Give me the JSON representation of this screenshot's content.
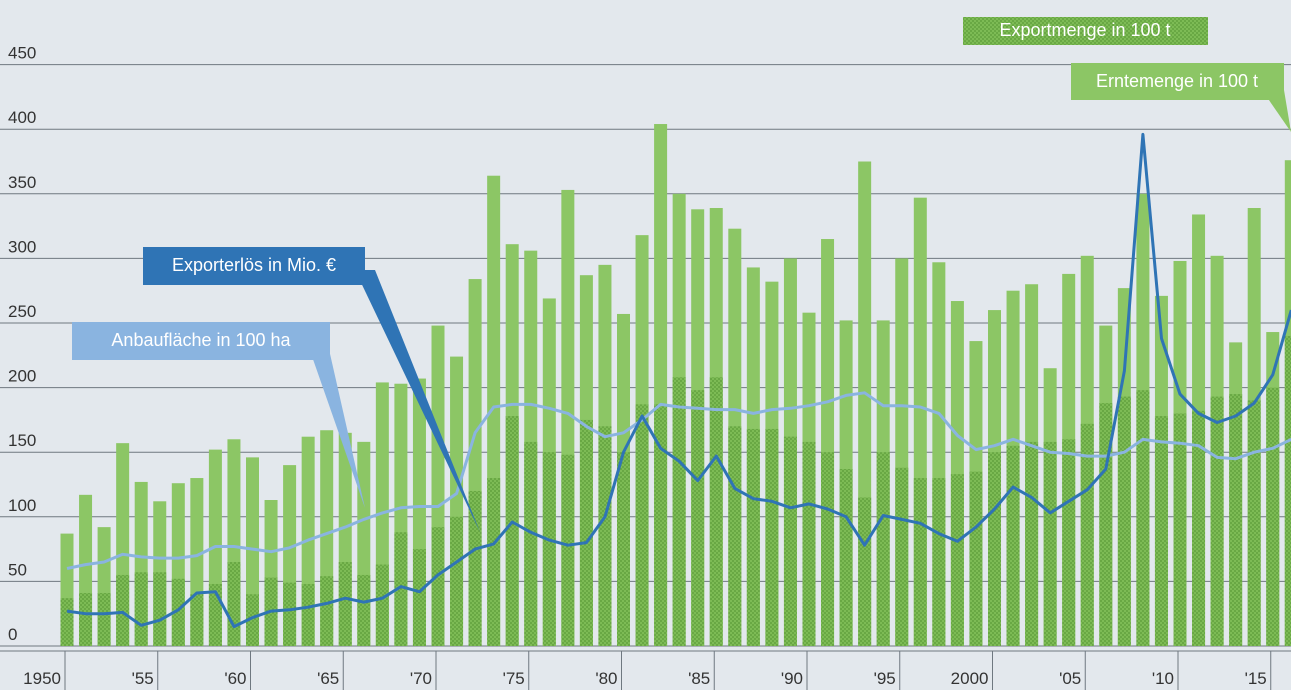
{
  "chart_data": {
    "type": "bar-line",
    "categories": [
      "1950",
      null,
      null,
      null,
      null,
      "'55",
      null,
      null,
      null,
      null,
      "'60",
      null,
      null,
      null,
      null,
      "'65",
      null,
      null,
      null,
      null,
      "'70",
      null,
      null,
      null,
      null,
      "'75",
      null,
      null,
      null,
      null,
      "'80",
      null,
      null,
      null,
      null,
      "'85",
      null,
      null,
      null,
      null,
      "'90",
      null,
      null,
      null,
      null,
      "'95",
      null,
      null,
      null,
      null,
      "2000",
      null,
      null,
      null,
      null,
      "'05",
      null,
      null,
      null,
      null,
      "'10",
      null,
      null,
      null,
      null,
      "'15",
      null
    ],
    "series": [
      {
        "name": "Erntemenge in 100 t",
        "kind": "bar",
        "color": "#8cc665",
        "values": [
          87,
          117,
          92,
          157,
          127,
          112,
          126,
          130,
          152,
          160,
          146,
          113,
          140,
          162,
          167,
          165,
          158,
          204,
          203,
          207,
          248,
          224,
          284,
          364,
          311,
          306,
          269,
          353,
          287,
          295,
          257,
          318,
          404,
          350,
          338,
          339,
          323,
          293,
          282,
          300,
          258,
          315,
          252,
          375,
          252,
          300,
          347,
          297,
          267,
          236,
          260,
          275,
          280,
          215,
          288,
          302,
          248,
          277,
          350,
          271,
          298,
          334,
          302,
          235,
          339,
          243,
          376
        ]
      },
      {
        "name": "Exportmenge in 100 t",
        "kind": "bar",
        "color": "#74b44c",
        "values": [
          37,
          41,
          41,
          55,
          57,
          57,
          52,
          40,
          48,
          65,
          40,
          53,
          49,
          48,
          54,
          65,
          55,
          63,
          88,
          75,
          92,
          100,
          120,
          130,
          178,
          158,
          150,
          148,
          175,
          170,
          150,
          187,
          187,
          208,
          198,
          208,
          170,
          168,
          168,
          162,
          158,
          150,
          137,
          115,
          150,
          138,
          130,
          130,
          133,
          135,
          150,
          155,
          158,
          158,
          160,
          172,
          188,
          193,
          198,
          178,
          180,
          182,
          193,
          195,
          190,
          200,
          240
        ]
      },
      {
        "name": "Anbaufläche in 100 ha",
        "kind": "line",
        "color": "#8ab4e0",
        "values": [
          60,
          63,
          65,
          71,
          69,
          68,
          68,
          70,
          77,
          77,
          75,
          73,
          76,
          82,
          87,
          92,
          98,
          103,
          107,
          108,
          108,
          118,
          165,
          185,
          187,
          187,
          184,
          180,
          170,
          162,
          165,
          175,
          187,
          185,
          184,
          183,
          183,
          180,
          183,
          184,
          186,
          189,
          194,
          196,
          186,
          186,
          185,
          180,
          163,
          152,
          155,
          160,
          155,
          150,
          149,
          147,
          147,
          150,
          160,
          158,
          157,
          155,
          146,
          145,
          150,
          153,
          160
        ]
      },
      {
        "name": "Exporterlös in Mio. €",
        "kind": "line",
        "color": "#2f74b5",
        "values": [
          27,
          25,
          25,
          26,
          16,
          20,
          28,
          41,
          42,
          15,
          22,
          27,
          28,
          30,
          33,
          37,
          34,
          37,
          46,
          42,
          55,
          65,
          75,
          79,
          96,
          88,
          82,
          78,
          80,
          100,
          150,
          178,
          153,
          143,
          128,
          147,
          122,
          114,
          112,
          107,
          110,
          106,
          100,
          78,
          101,
          98,
          95,
          87,
          81,
          92,
          106,
          123,
          115,
          103,
          112,
          121,
          137,
          213,
          396,
          238,
          195,
          180,
          173,
          178,
          188,
          210,
          260
        ]
      }
    ],
    "ylim": [
      0,
      500
    ],
    "yticks": [
      0,
      50,
      100,
      150,
      200,
      250,
      300,
      350,
      400,
      450
    ],
    "grid": true
  }
}
